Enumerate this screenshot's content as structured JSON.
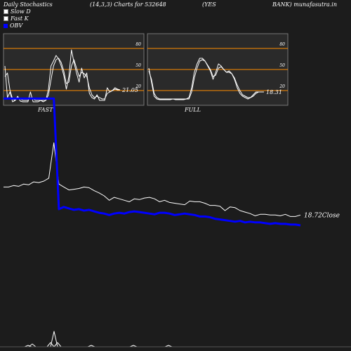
{
  "header": {
    "title": "Daily Stochastics",
    "params": "(14,3,3) Charts for 532648",
    "symbol_a": "(YES",
    "symbol_b": "BANK) munafasutra.in"
  },
  "legend": [
    {
      "label": "Slow  D",
      "swatch": "white"
    },
    {
      "label": "Fast K",
      "swatch": "white"
    },
    {
      "label": "OBV",
      "swatch": "blue"
    }
  ],
  "colors": {
    "background": "#1c1c1c",
    "panel": "#2a2a2a",
    "level": "#ff8c00",
    "stoch": "#ffffff",
    "obv": "#0000ff",
    "price": "#ffffff"
  },
  "chart_data": [
    {
      "type": "line",
      "title": "FAST",
      "levels": [
        20,
        50,
        80
      ],
      "level_labels": [
        "20",
        "50",
        "80"
      ],
      "ylim": [
        0,
        100
      ],
      "last_value_label": "21.05",
      "series": [
        {
          "values": [
            55,
            10,
            18,
            4,
            6,
            12,
            5,
            4,
            4,
            4,
            18,
            4,
            4,
            4,
            6,
            4,
            6,
            22,
            55,
            62,
            70,
            65,
            55,
            42,
            22,
            40,
            78,
            60,
            45,
            32,
            52,
            38,
            45,
            16,
            10,
            8,
            14,
            6,
            6,
            6,
            24,
            18,
            20,
            24,
            22,
            21
          ]
        },
        {
          "values": [
            40,
            45,
            20,
            8,
            6,
            10,
            8,
            6,
            6,
            6,
            10,
            8,
            6,
            6,
            6,
            6,
            6,
            14,
            35,
            55,
            64,
            66,
            60,
            48,
            30,
            32,
            55,
            64,
            52,
            40,
            46,
            44,
            40,
            24,
            14,
            10,
            12,
            10,
            8,
            8,
            16,
            18,
            20,
            22,
            21,
            21
          ]
        }
      ]
    },
    {
      "type": "line",
      "title": "FULL",
      "levels": [
        20,
        50,
        80
      ],
      "level_labels": [
        "20",
        "50",
        "80"
      ],
      "ylim": [
        0,
        100
      ],
      "last_value_label": "18.31",
      "series": [
        {
          "values": [
            52,
            32,
            12,
            8,
            7,
            7,
            7,
            7,
            7,
            8,
            7,
            7,
            7,
            7,
            8,
            10,
            24,
            46,
            58,
            66,
            66,
            62,
            55,
            48,
            36,
            46,
            58,
            55,
            50,
            46,
            48,
            44,
            36,
            24,
            16,
            12,
            10,
            8,
            10,
            14,
            18,
            18,
            18,
            18
          ]
        },
        {
          "values": [
            48,
            36,
            16,
            10,
            8,
            8,
            8,
            8,
            8,
            8,
            8,
            8,
            8,
            8,
            8,
            8,
            18,
            38,
            52,
            62,
            64,
            62,
            56,
            50,
            40,
            42,
            52,
            54,
            50,
            46,
            46,
            44,
            38,
            28,
            20,
            14,
            12,
            10,
            10,
            12,
            16,
            18,
            18,
            18
          ]
        }
      ]
    },
    {
      "type": "line",
      "title": "",
      "last_value_label": "18.72",
      "last_value_unit": "Close",
      "series": [
        {
          "name": "Price",
          "values": [
            32,
            32,
            34,
            33,
            36,
            35,
            39,
            38,
            40,
            44,
            92,
            36,
            32,
            28,
            29,
            30,
            32,
            31,
            27,
            24,
            20,
            14,
            18,
            16,
            14,
            12,
            16,
            15,
            17,
            18,
            16,
            12,
            14,
            11,
            10,
            9,
            8,
            13,
            12,
            12,
            10,
            7,
            7,
            6,
            0,
            5,
            4,
            0,
            -2,
            -4,
            -7,
            -5,
            -5,
            -6,
            -6,
            -7,
            -5,
            -8,
            -8,
            -6
          ]
        },
        {
          "name": "OBV",
          "values": [
            152,
            152,
            152,
            152,
            152,
            152,
            152,
            152,
            152,
            152,
            152,
            2,
            5,
            3,
            1,
            2,
            0,
            1,
            -1,
            -3,
            -4,
            -6,
            -4,
            -3,
            -4,
            -2,
            -1,
            -2,
            -3,
            -4,
            -5,
            -3,
            -3,
            -4,
            -6,
            -5,
            -4,
            -5,
            -6,
            -8,
            -8,
            -9,
            -11,
            -12,
            -13,
            -14,
            -15,
            -14,
            -16,
            -15,
            -16,
            -16,
            -17,
            -18,
            -17,
            -18,
            -18,
            -19,
            -19,
            -20
          ]
        }
      ]
    }
  ]
}
